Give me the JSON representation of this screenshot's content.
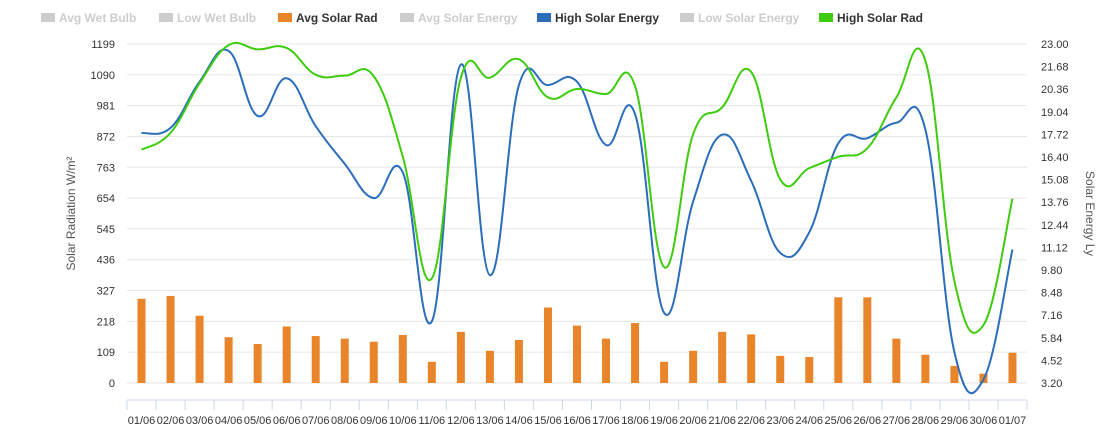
{
  "chart_data": {
    "type": "bar+line",
    "legend": [
      {
        "name": "Avg Wet Bulb",
        "color": "#cccccc",
        "visible": false
      },
      {
        "name": "Low Wet Bulb",
        "color": "#cccccc",
        "visible": false
      },
      {
        "name": "Avg Solar Rad",
        "color": "#e8842a",
        "visible": true
      },
      {
        "name": "Avg Solar Energy",
        "color": "#cccccc",
        "visible": false
      },
      {
        "name": "High Solar Energy",
        "color": "#2a6ebb",
        "visible": true
      },
      {
        "name": "Low Solar Energy",
        "color": "#cccccc",
        "visible": false
      },
      {
        "name": "High Solar Rad",
        "color": "#3fcc0e",
        "visible": true
      }
    ],
    "legend_position": "top",
    "categories": [
      "01/06",
      "02/06",
      "03/06",
      "04/06",
      "05/06",
      "06/06",
      "07/06",
      "08/06",
      "09/06",
      "10/06",
      "11/06",
      "12/06",
      "13/06",
      "14/06",
      "15/06",
      "16/06",
      "17/06",
      "18/06",
      "19/06",
      "20/06",
      "21/06",
      "22/06",
      "23/06",
      "24/06",
      "25/06",
      "26/06",
      "27/06",
      "28/06",
      "29/06",
      "30/06",
      "01/07"
    ],
    "y_left": {
      "label": "Solar Radiation W/m²",
      "ticks": [
        "0",
        "109",
        "218",
        "327",
        "436",
        "545",
        "654",
        "763",
        "872",
        "981",
        "1090",
        "1199"
      ],
      "range": [
        0,
        1199
      ]
    },
    "y_right": {
      "label": "Solar Energy Ly",
      "ticks": [
        "3.20",
        "4.52",
        "5.84",
        "7.16",
        "8.48",
        "9.80",
        "11.12",
        "12.44",
        "13.76",
        "15.08",
        "16.40",
        "17.72",
        "19.04",
        "20.36",
        "21.68",
        "23.00"
      ],
      "range": [
        3.2,
        23.0
      ]
    },
    "grid": true,
    "series": [
      {
        "name": "Avg Solar Rad",
        "type": "bar",
        "axis": "left",
        "color": "#e8842a",
        "values": [
          298,
          308,
          238,
          162,
          138,
          200,
          166,
          157,
          146,
          170,
          75,
          181,
          114,
          152,
          267,
          203,
          157,
          212,
          75,
          114,
          181,
          172,
          96,
          92,
          303,
          303,
          157,
          100,
          60,
          33,
          107
        ]
      },
      {
        "name": "High Solar Energy",
        "type": "line",
        "axis": "right",
        "color": "#2a6ebb",
        "values": [
          17.8,
          18.1,
          20.8,
          22.6,
          18.8,
          21.0,
          18.2,
          16.0,
          14.0,
          15.5,
          6.8,
          21.8,
          9.5,
          20.6,
          20.6,
          20.8,
          17.1,
          18.9,
          7.3,
          13.8,
          17.7,
          15.0,
          10.8,
          12.0,
          17.2,
          17.5,
          18.4,
          18.0,
          5.0,
          3.4,
          11.0
        ]
      },
      {
        "name": "High Solar Rad",
        "type": "line",
        "axis": "left",
        "color": "#3fcc0e",
        "values": [
          825,
          885,
          1060,
          1195,
          1180,
          1185,
          1090,
          1087,
          1085,
          800,
          370,
          1080,
          1080,
          1145,
          1010,
          1040,
          1022,
          1050,
          410,
          880,
          975,
          1100,
          720,
          760,
          800,
          830,
          1010,
          1140,
          360,
          205,
          652
        ]
      }
    ]
  }
}
